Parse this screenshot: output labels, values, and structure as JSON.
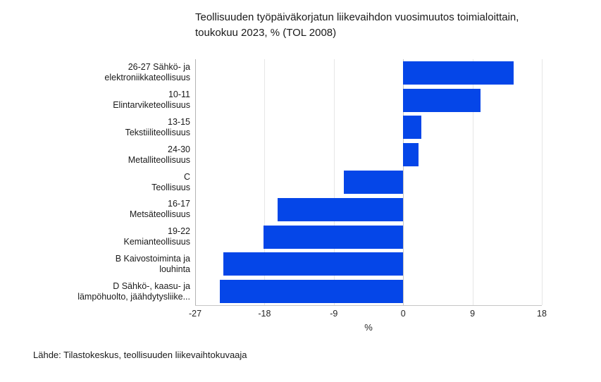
{
  "title_lines": [
    "Teollisuuden työpäiväkorjatun liikevaihdon vuosimuutos toimialoittain,",
    "toukokuu 2023, % (TOL 2008)"
  ],
  "footer": "Lähde: Tilastokeskus, teollisuuden liikevaihtokuvaaja",
  "colors": {
    "bar": "#0546e8",
    "gridline": "#e6e6e6",
    "zero_line": "#c6c6c6",
    "edge_line": "#b3b3b3",
    "text": "#1a1a1a"
  },
  "chart_data": {
    "type": "bar",
    "orientation": "horizontal",
    "title": "Teollisuuden työpäiväkorjatun liikevaihdon vuosimuutos toimialoittain, toukokuu 2023, % (TOL 2008)",
    "categories": [
      [
        "26-27 Sähkö- ja",
        "elektroniikkateollisuus"
      ],
      [
        "10-11",
        "Elintarviketeollisuus"
      ],
      [
        "13-15",
        "Tekstiiliteollisuus"
      ],
      [
        "24-30",
        "Metalliteollisuus"
      ],
      [
        "C",
        "Teollisuus"
      ],
      [
        "16-17",
        "Metsäteollisuus"
      ],
      [
        "19-22",
        "Kemianteollisuus"
      ],
      [
        "B Kaivostoiminta ja",
        "louhinta"
      ],
      [
        "D Sähkö-, kaasu- ja",
        "lämpöhuolto, jäähdytysliike..."
      ]
    ],
    "values": [
      14.3,
      10.0,
      2.4,
      2.0,
      -7.7,
      -16.3,
      -18.1,
      -23.3,
      -23.8
    ],
    "xlabel": "%",
    "ylabel": "",
    "xlim": [
      -27,
      18
    ],
    "xticks": [
      -27,
      -18,
      -9,
      0,
      9,
      18
    ],
    "grid": true,
    "legend": false
  }
}
